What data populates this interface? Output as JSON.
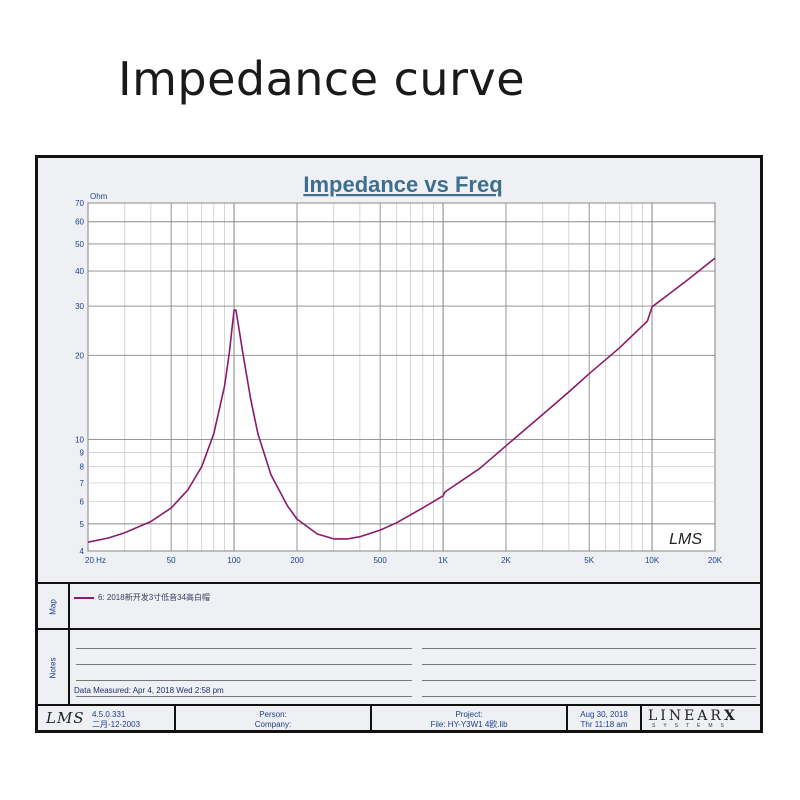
{
  "page": {
    "title": "Impedance curve"
  },
  "chart_data": {
    "type": "line",
    "title": "Impedance vs Freq",
    "ylabel": "Ohm",
    "xscale": "log",
    "yscale": "log",
    "xlim": [
      20,
      20000
    ],
    "ylim": [
      4,
      70
    ],
    "grid": true,
    "x_tick_labels": [
      {
        "v": 20,
        "t": "20  Hz"
      },
      {
        "v": 50,
        "t": "50"
      },
      {
        "v": 100,
        "t": "100"
      },
      {
        "v": 200,
        "t": "200"
      },
      {
        "v": 500,
        "t": "500"
      },
      {
        "v": 1000,
        "t": "1K"
      },
      {
        "v": 2000,
        "t": "2K"
      },
      {
        "v": 5000,
        "t": "5K"
      },
      {
        "v": 10000,
        "t": "10K"
      },
      {
        "v": 20000,
        "t": "20K"
      }
    ],
    "y_tick_labels": [
      {
        "v": 4,
        "t": "4"
      },
      {
        "v": 5,
        "t": "5"
      },
      {
        "v": 6,
        "t": "6"
      },
      {
        "v": 7,
        "t": "7"
      },
      {
        "v": 8,
        "t": "8"
      },
      {
        "v": 9,
        "t": "9"
      },
      {
        "v": 10,
        "t": "10"
      },
      {
        "v": 20,
        "t": "20"
      },
      {
        "v": 30,
        "t": "30"
      },
      {
        "v": 40,
        "t": "40"
      },
      {
        "v": 50,
        "t": "50"
      },
      {
        "v": 60,
        "t": "60"
      },
      {
        "v": 70,
        "t": "70"
      }
    ],
    "watermark": "LMS",
    "series": [
      {
        "name": "6: 2018新开发3寸低音34高白帽",
        "color": "#8b1a6b",
        "x": [
          20,
          25,
          30,
          40,
          50,
          60,
          70,
          80,
          90,
          95,
          98,
          100,
          102,
          105,
          110,
          120,
          130,
          150,
          180,
          200,
          250,
          300,
          350,
          400,
          500,
          600,
          800,
          1000,
          1020,
          1500,
          2000,
          3000,
          4000,
          5000,
          7000,
          9000,
          9500,
          10000,
          12000,
          15000,
          20000
        ],
        "y": [
          4.3,
          4.45,
          4.65,
          5.1,
          5.7,
          6.6,
          8.0,
          10.5,
          15.5,
          20.5,
          25.5,
          29,
          29,
          25.5,
          20.5,
          14.0,
          10.5,
          7.5,
          5.8,
          5.2,
          4.6,
          4.42,
          4.42,
          4.5,
          4.75,
          5.05,
          5.7,
          6.3,
          6.5,
          7.9,
          9.5,
          12.3,
          14.8,
          17.2,
          21.3,
          25.5,
          26.5,
          29.8,
          33.0,
          37.5,
          44.5
        ]
      }
    ]
  },
  "map": {
    "label": "Map"
  },
  "notes": {
    "label": "Notes",
    "measured": "Data Measured:  Apr  4, 2018  Wed  2:58 pm"
  },
  "footer": {
    "logo": "LMS",
    "version": "4.5.0.331",
    "date_cn": "二月-12-2003",
    "person_label": "Person:",
    "company_label": "Company:",
    "project_label": "Project:",
    "file_label": "File: HY-Y3W1 4欧.lib",
    "date": "Aug 30, 2018",
    "time": "Thr  11:18 am",
    "brand": "LINEAR",
    "brand_x": "X",
    "systems": "SYSTEMS"
  }
}
